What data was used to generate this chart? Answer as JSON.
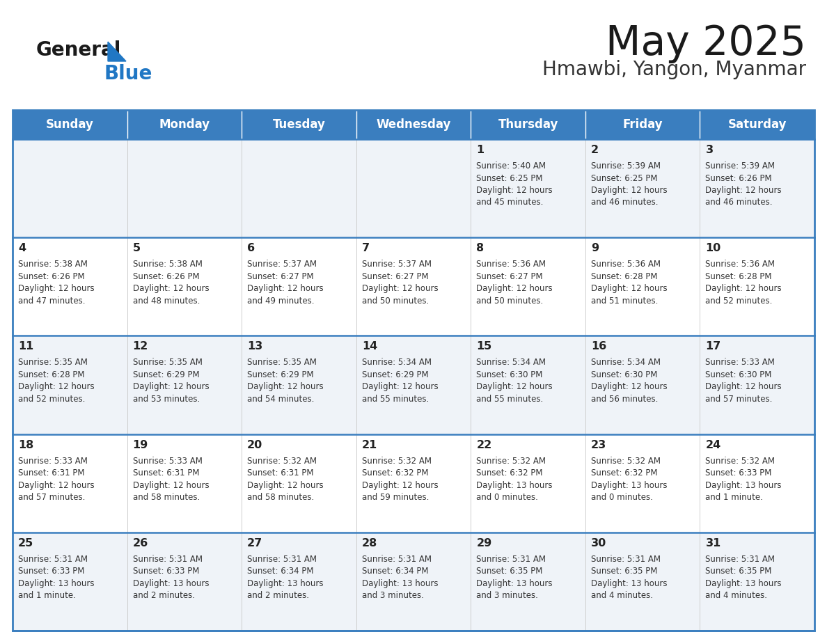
{
  "title": "May 2025",
  "subtitle": "Hmawbi, Yangon, Myanmar",
  "header_bg": "#3a7ebf",
  "header_text": "#ffffff",
  "row_bg_odd": "#eff3f8",
  "row_bg_even": "#ffffff",
  "border_color": "#3a7ebf",
  "day_headers": [
    "Sunday",
    "Monday",
    "Tuesday",
    "Wednesday",
    "Thursday",
    "Friday",
    "Saturday"
  ],
  "title_color": "#1a1a1a",
  "subtitle_color": "#333333",
  "cell_text_color": "#333333",
  "day_num_color": "#222222",
  "logo_general_color": "#1a1a1a",
  "logo_blue_color": "#2077c4",
  "logo_triangle_color": "#2077c4",
  "calendar": [
    [
      {
        "day": "",
        "sunrise": "",
        "sunset": "",
        "daylight": ""
      },
      {
        "day": "",
        "sunrise": "",
        "sunset": "",
        "daylight": ""
      },
      {
        "day": "",
        "sunrise": "",
        "sunset": "",
        "daylight": ""
      },
      {
        "day": "",
        "sunrise": "",
        "sunset": "",
        "daylight": ""
      },
      {
        "day": "1",
        "sunrise": "5:40 AM",
        "sunset": "6:25 PM",
        "daylight": "12 hours\nand 45 minutes."
      },
      {
        "day": "2",
        "sunrise": "5:39 AM",
        "sunset": "6:25 PM",
        "daylight": "12 hours\nand 46 minutes."
      },
      {
        "day": "3",
        "sunrise": "5:39 AM",
        "sunset": "6:26 PM",
        "daylight": "12 hours\nand 46 minutes."
      }
    ],
    [
      {
        "day": "4",
        "sunrise": "5:38 AM",
        "sunset": "6:26 PM",
        "daylight": "12 hours\nand 47 minutes."
      },
      {
        "day": "5",
        "sunrise": "5:38 AM",
        "sunset": "6:26 PM",
        "daylight": "12 hours\nand 48 minutes."
      },
      {
        "day": "6",
        "sunrise": "5:37 AM",
        "sunset": "6:27 PM",
        "daylight": "12 hours\nand 49 minutes."
      },
      {
        "day": "7",
        "sunrise": "5:37 AM",
        "sunset": "6:27 PM",
        "daylight": "12 hours\nand 50 minutes."
      },
      {
        "day": "8",
        "sunrise": "5:36 AM",
        "sunset": "6:27 PM",
        "daylight": "12 hours\nand 50 minutes."
      },
      {
        "day": "9",
        "sunrise": "5:36 AM",
        "sunset": "6:28 PM",
        "daylight": "12 hours\nand 51 minutes."
      },
      {
        "day": "10",
        "sunrise": "5:36 AM",
        "sunset": "6:28 PM",
        "daylight": "12 hours\nand 52 minutes."
      }
    ],
    [
      {
        "day": "11",
        "sunrise": "5:35 AM",
        "sunset": "6:28 PM",
        "daylight": "12 hours\nand 52 minutes."
      },
      {
        "day": "12",
        "sunrise": "5:35 AM",
        "sunset": "6:29 PM",
        "daylight": "12 hours\nand 53 minutes."
      },
      {
        "day": "13",
        "sunrise": "5:35 AM",
        "sunset": "6:29 PM",
        "daylight": "12 hours\nand 54 minutes."
      },
      {
        "day": "14",
        "sunrise": "5:34 AM",
        "sunset": "6:29 PM",
        "daylight": "12 hours\nand 55 minutes."
      },
      {
        "day": "15",
        "sunrise": "5:34 AM",
        "sunset": "6:30 PM",
        "daylight": "12 hours\nand 55 minutes."
      },
      {
        "day": "16",
        "sunrise": "5:34 AM",
        "sunset": "6:30 PM",
        "daylight": "12 hours\nand 56 minutes."
      },
      {
        "day": "17",
        "sunrise": "5:33 AM",
        "sunset": "6:30 PM",
        "daylight": "12 hours\nand 57 minutes."
      }
    ],
    [
      {
        "day": "18",
        "sunrise": "5:33 AM",
        "sunset": "6:31 PM",
        "daylight": "12 hours\nand 57 minutes."
      },
      {
        "day": "19",
        "sunrise": "5:33 AM",
        "sunset": "6:31 PM",
        "daylight": "12 hours\nand 58 minutes."
      },
      {
        "day": "20",
        "sunrise": "5:32 AM",
        "sunset": "6:31 PM",
        "daylight": "12 hours\nand 58 minutes."
      },
      {
        "day": "21",
        "sunrise": "5:32 AM",
        "sunset": "6:32 PM",
        "daylight": "12 hours\nand 59 minutes."
      },
      {
        "day": "22",
        "sunrise": "5:32 AM",
        "sunset": "6:32 PM",
        "daylight": "13 hours\nand 0 minutes."
      },
      {
        "day": "23",
        "sunrise": "5:32 AM",
        "sunset": "6:32 PM",
        "daylight": "13 hours\nand 0 minutes."
      },
      {
        "day": "24",
        "sunrise": "5:32 AM",
        "sunset": "6:33 PM",
        "daylight": "13 hours\nand 1 minute."
      }
    ],
    [
      {
        "day": "25",
        "sunrise": "5:31 AM",
        "sunset": "6:33 PM",
        "daylight": "13 hours\nand 1 minute."
      },
      {
        "day": "26",
        "sunrise": "5:31 AM",
        "sunset": "6:33 PM",
        "daylight": "13 hours\nand 2 minutes."
      },
      {
        "day": "27",
        "sunrise": "5:31 AM",
        "sunset": "6:34 PM",
        "daylight": "13 hours\nand 2 minutes."
      },
      {
        "day": "28",
        "sunrise": "5:31 AM",
        "sunset": "6:34 PM",
        "daylight": "13 hours\nand 3 minutes."
      },
      {
        "day": "29",
        "sunrise": "5:31 AM",
        "sunset": "6:35 PM",
        "daylight": "13 hours\nand 3 minutes."
      },
      {
        "day": "30",
        "sunrise": "5:31 AM",
        "sunset": "6:35 PM",
        "daylight": "13 hours\nand 4 minutes."
      },
      {
        "day": "31",
        "sunrise": "5:31 AM",
        "sunset": "6:35 PM",
        "daylight": "13 hours\nand 4 minutes."
      }
    ]
  ]
}
